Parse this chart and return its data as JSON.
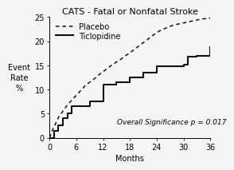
{
  "title": "CATS - Fatal or Nonfatal Stroke",
  "xlabel": "Months",
  "ylabel": "Event\nRate\n%",
  "xlim": [
    0,
    36
  ],
  "ylim": [
    0,
    25
  ],
  "xticks": [
    0,
    6,
    12,
    18,
    24,
    30,
    36
  ],
  "yticks": [
    0,
    5,
    10,
    15,
    20,
    25
  ],
  "annotation": "Overall Significance p = 0.017",
  "placebo_x": [
    0,
    0.5,
    1,
    1.5,
    2,
    3,
    4,
    5,
    6,
    7,
    8,
    9,
    10,
    11,
    12,
    13,
    14,
    15,
    16,
    17,
    18,
    19,
    20,
    21,
    22,
    23,
    24,
    25,
    26,
    27,
    28,
    29,
    30,
    31,
    32,
    33,
    34,
    35,
    36
  ],
  "placebo_y": [
    0,
    1.2,
    2.2,
    3.2,
    4.2,
    5.5,
    6.8,
    7.8,
    8.8,
    9.8,
    10.8,
    11.5,
    12.2,
    13.0,
    13.7,
    14.4,
    15.1,
    15.7,
    16.3,
    17.0,
    17.6,
    18.3,
    19.0,
    19.7,
    20.4,
    21.1,
    21.8,
    22.3,
    22.7,
    23.1,
    23.4,
    23.6,
    23.8,
    24.0,
    24.2,
    24.4,
    24.6,
    24.7,
    24.8
  ],
  "ticlopidine_x": [
    0,
    1,
    2,
    3,
    4,
    5,
    6,
    9,
    12,
    15,
    18,
    21,
    24,
    27,
    30,
    31,
    33,
    36
  ],
  "ticlopidine_y": [
    0,
    1.5,
    2.5,
    4.0,
    5.0,
    6.5,
    6.5,
    7.5,
    11.0,
    11.5,
    12.5,
    13.5,
    14.8,
    14.9,
    15.2,
    16.8,
    17.0,
    18.8
  ],
  "background_color": "#f5f5f5",
  "line_color": "#111111",
  "title_fontsize": 8,
  "label_fontsize": 7,
  "tick_fontsize": 7,
  "annotation_fontsize": 6.5
}
